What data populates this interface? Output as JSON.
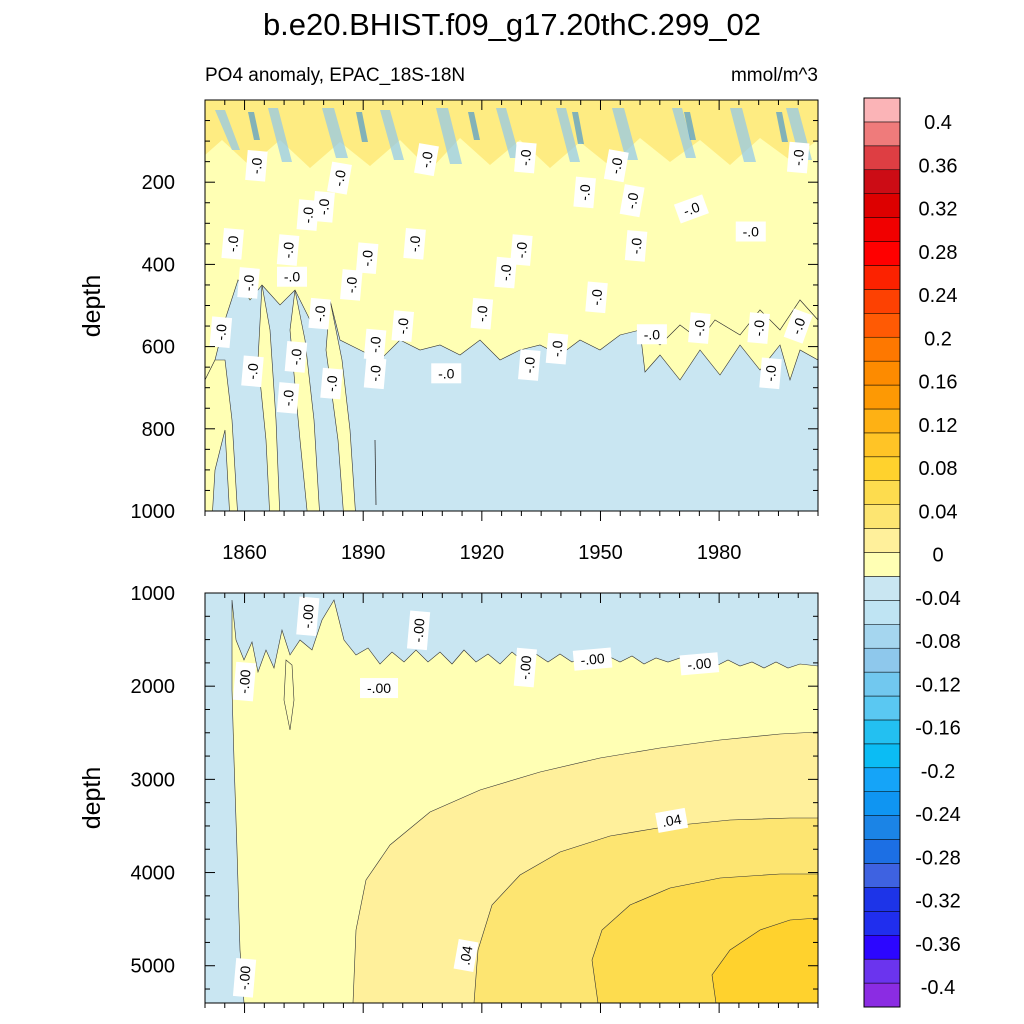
{
  "title": "b.e20.BHIST.f09_g17.20thC.299_02",
  "chart_data": {
    "type": "heatmap",
    "subtitle": "PO4 anomaly, EPAC_18S-18N",
    "units": "mmol/m^3",
    "x": {
      "label": "",
      "range": [
        1850,
        2005
      ],
      "ticks": [
        1860,
        1890,
        1920,
        1950,
        1980
      ]
    },
    "panels": [
      {
        "id": "upper",
        "ylabel": "depth",
        "yrange": [
          0,
          1000
        ],
        "yticks": [
          200,
          400,
          600,
          800,
          1000
        ],
        "y_inverted": true,
        "contour_labels": [
          {
            "t": "-.0",
            "x": 1863,
            "y": 160,
            "rot": -85
          },
          {
            "t": "-.0",
            "x": 1876,
            "y": 280,
            "rot": -85
          },
          {
            "t": "-.0",
            "x": 1884,
            "y": 190,
            "rot": -80
          },
          {
            "t": "-.0",
            "x": 1880,
            "y": 260,
            "rot": -85
          },
          {
            "t": "-.0",
            "x": 1906,
            "y": 145,
            "rot": -80
          },
          {
            "t": "-.0",
            "x": 1931,
            "y": 140,
            "rot": -85
          },
          {
            "t": "-.0",
            "x": 1954,
            "y": 160,
            "rot": -80
          },
          {
            "t": "-.0",
            "x": 1946,
            "y": 225,
            "rot": -85
          },
          {
            "t": "-.0",
            "x": 1958,
            "y": 245,
            "rot": -80
          },
          {
            "t": "-.0",
            "x": 1973,
            "y": 265,
            "rot": -20
          },
          {
            "t": "-.0",
            "x": 1988,
            "y": 320,
            "rot": 0
          },
          {
            "t": "-.0",
            "x": 2000,
            "y": 140,
            "rot": -85
          },
          {
            "t": "-.0",
            "x": 1857,
            "y": 350,
            "rot": -85
          },
          {
            "t": "-.0",
            "x": 1871,
            "y": 365,
            "rot": -85
          },
          {
            "t": "-.0",
            "x": 1872,
            "y": 430,
            "rot": 0
          },
          {
            "t": "-.0",
            "x": 1891,
            "y": 385,
            "rot": -85
          },
          {
            "t": "-.0",
            "x": 1903,
            "y": 350,
            "rot": -85
          },
          {
            "t": "-.0",
            "x": 1930,
            "y": 365,
            "rot": -85
          },
          {
            "t": "-.0",
            "x": 1926,
            "y": 420,
            "rot": -85
          },
          {
            "t": "-.0",
            "x": 1959,
            "y": 355,
            "rot": -85
          },
          {
            "t": "-.0",
            "x": 1861,
            "y": 445,
            "rot": -85
          },
          {
            "t": "-.0",
            "x": 1887,
            "y": 450,
            "rot": -85
          },
          {
            "t": "-.0",
            "x": 1949,
            "y": 480,
            "rot": -85
          },
          {
            "t": "-.0",
            "x": 1879,
            "y": 520,
            "rot": -85
          },
          {
            "t": "-.0",
            "x": 1920,
            "y": 520,
            "rot": -85
          },
          {
            "t": "-.0",
            "x": 1854,
            "y": 565,
            "rot": -85
          },
          {
            "t": "-.0",
            "x": 1900,
            "y": 550,
            "rot": -85
          },
          {
            "t": "-.0",
            "x": 1939,
            "y": 605,
            "rot": -85
          },
          {
            "t": "-.0",
            "x": 1963,
            "y": 570,
            "rot": 0
          },
          {
            "t": "-.0",
            "x": 1975,
            "y": 555,
            "rot": -85
          },
          {
            "t": "-.0",
            "x": 1990,
            "y": 555,
            "rot": -85
          },
          {
            "t": "-.0",
            "x": 2000,
            "y": 550,
            "rot": -70
          },
          {
            "t": "-.0",
            "x": 1862,
            "y": 660,
            "rot": -85
          },
          {
            "t": "-.0",
            "x": 1873,
            "y": 625,
            "rot": -85
          },
          {
            "t": "-.0",
            "x": 1893,
            "y": 595,
            "rot": -85
          },
          {
            "t": "-.0",
            "x": 1871,
            "y": 725,
            "rot": -85
          },
          {
            "t": "-.0",
            "x": 1893,
            "y": 665,
            "rot": -85
          },
          {
            "t": "-.0",
            "x": 1882,
            "y": 690,
            "rot": -85
          },
          {
            "t": "-.0",
            "x": 1911,
            "y": 665,
            "rot": 0
          },
          {
            "t": "-.0",
            "x": 1932,
            "y": 645,
            "rot": -85
          },
          {
            "t": "-.0",
            "x": 1993,
            "y": 665,
            "rot": -85
          }
        ]
      },
      {
        "id": "lower",
        "ylabel": "depth",
        "yrange": [
          1000,
          5400
        ],
        "yticks": [
          1000,
          2000,
          3000,
          4000,
          5000
        ],
        "y_inverted": true,
        "contour_labels": [
          {
            "t": "-.00",
            "x": 1876,
            "y": 1250,
            "rot": -85
          },
          {
            "t": "-.00",
            "x": 1904,
            "y": 1400,
            "rot": -85
          },
          {
            "t": "-.00",
            "x": 1860,
            "y": 1950,
            "rot": -85
          },
          {
            "t": "-.00",
            "x": 1894,
            "y": 2020,
            "rot": 0
          },
          {
            "t": "-.00",
            "x": 1931,
            "y": 1800,
            "rot": -85
          },
          {
            "t": "-.00",
            "x": 1948,
            "y": 1710,
            "rot": -5
          },
          {
            "t": "-.00",
            "x": 1975,
            "y": 1760,
            "rot": -5
          },
          {
            "t": "-.00",
            "x": 1860,
            "y": 5130,
            "rot": -85
          },
          {
            "t": ".04",
            "x": 1968,
            "y": 3440,
            "rot": -10
          },
          {
            "t": ".04",
            "x": 1916,
            "y": 4890,
            "rot": -80
          }
        ]
      }
    ],
    "colorbar": {
      "colors": [
        "#8b2ce3",
        "#6b34ee",
        "#2c06ff",
        "#202eee",
        "#1d34e8",
        "#3e62e1",
        "#1c6fe4",
        "#1b84e6",
        "#0f95f2",
        "#15a4f8",
        "#0bbcf4",
        "#23c0f1",
        "#5ac8f2",
        "#71c8ef",
        "#8ec8ec",
        "#a5d6ef",
        "#bfe4f3",
        "#c9e6f2",
        "#ffffb4",
        "#fff09b",
        "#fde571",
        "#fddc4e",
        "#ffd22d",
        "#ffc426",
        "#feb114",
        "#fd9904",
        "#fd8b00",
        "#fe7800",
        "#ff5a04",
        "#fd4102",
        "#fc2200",
        "#ff0000",
        "#f10000",
        "#dd0000",
        "#cc0c15",
        "#de3e43",
        "#ef7b7b",
        "#fbb4b7"
      ],
      "labels": [
        "-0.4",
        "-0.36",
        "-0.32",
        "-0.28",
        "-0.24",
        "-0.2",
        "-0.16",
        "-0.12",
        "-0.08",
        "-0.04",
        "0",
        "0.04",
        "0.08",
        "0.12",
        "0.16",
        "0.2",
        "0.24",
        "0.28",
        "0.32",
        "0.36",
        "0.4"
      ]
    }
  }
}
